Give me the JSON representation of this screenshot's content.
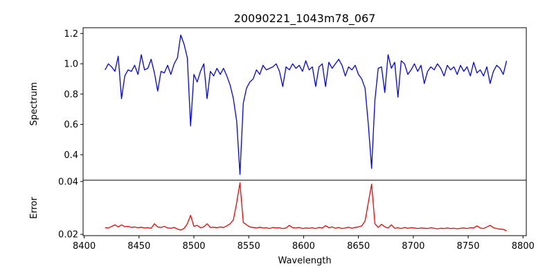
{
  "chart_data": [
    {
      "type": "line",
      "title": "20090221_1043m78_067",
      "xlabel": "",
      "ylabel": "Spectrum",
      "xlim": [
        8399,
        8803
      ],
      "ylim": [
        0.232,
        1.238
      ],
      "yticks": [
        "0.4",
        "0.6",
        "0.8",
        "1.0",
        "1.2"
      ],
      "ytick_values": [
        0.4,
        0.6,
        0.8,
        1.0,
        1.2
      ],
      "grid": false,
      "series": [
        {
          "name": "Spectrum",
          "color": "#0000ff",
          "x_start": 8419,
          "x_step": 3,
          "values": [
            0.96,
            1.0,
            0.98,
            0.95,
            1.05,
            0.77,
            0.92,
            0.96,
            0.95,
            0.99,
            0.93,
            1.06,
            0.96,
            0.97,
            1.03,
            0.94,
            0.82,
            0.95,
            0.94,
            0.99,
            0.93,
            1.0,
            1.04,
            1.19,
            1.13,
            1.04,
            0.59,
            0.93,
            0.88,
            0.95,
            1.0,
            0.77,
            0.95,
            0.92,
            0.97,
            0.93,
            0.97,
            0.92,
            0.86,
            0.77,
            0.62,
            0.27,
            0.74,
            0.84,
            0.88,
            0.9,
            0.96,
            0.93,
            0.99,
            0.96,
            0.97,
            0.98,
            1.0,
            0.95,
            0.85,
            0.98,
            0.96,
            1.0,
            0.97,
            0.99,
            0.95,
            1.02,
            0.96,
            0.98,
            0.85,
            0.98,
            1.0,
            0.85,
            1.01,
            0.97,
            1.0,
            1.03,
            0.99,
            0.92,
            0.98,
            0.96,
            0.99,
            0.93,
            0.9,
            0.84,
            0.6,
            0.31,
            0.76,
            0.97,
            0.98,
            0.81,
            1.06,
            0.97,
            1.01,
            0.78,
            1.02,
            1.0,
            0.93,
            0.96,
            1.0,
            0.95,
            0.99,
            0.87,
            0.95,
            0.98,
            0.96,
            1.0,
            0.97,
            0.92,
            0.99,
            0.96,
            0.98,
            0.93,
            0.99,
            0.95,
            0.98,
            0.92,
            1.01,
            0.94,
            0.96,
            0.92,
            0.98,
            0.87,
            0.95,
            0.99,
            0.97,
            0.93,
            1.02
          ]
        }
      ]
    },
    {
      "type": "line",
      "title": "",
      "xlabel": "Wavelength",
      "ylabel": "Error",
      "xlim": [
        8399,
        8803
      ],
      "ylim": [
        0.0195,
        0.0405
      ],
      "xticks": [
        "8400",
        "8450",
        "8500",
        "8550",
        "8600",
        "8650",
        "8700",
        "8750",
        "8800"
      ],
      "xtick_values": [
        8400,
        8450,
        8500,
        8550,
        8600,
        8650,
        8700,
        8750,
        8800
      ],
      "yticks": [
        "0.02",
        "0.04"
      ],
      "ytick_values": [
        0.02,
        0.04
      ],
      "grid": false,
      "series": [
        {
          "name": "Error",
          "color": "#ff0000",
          "x_start": 8419,
          "x_step": 3,
          "values": [
            0.0225,
            0.0224,
            0.023,
            0.0236,
            0.0228,
            0.0236,
            0.0229,
            0.023,
            0.0226,
            0.0228,
            0.0225,
            0.0227,
            0.0224,
            0.0225,
            0.0223,
            0.024,
            0.0228,
            0.0226,
            0.023,
            0.0224,
            0.0223,
            0.0226,
            0.022,
            0.0216,
            0.0222,
            0.024,
            0.0272,
            0.023,
            0.0234,
            0.0225,
            0.0228,
            0.024,
            0.0226,
            0.0227,
            0.0225,
            0.0228,
            0.0226,
            0.0232,
            0.024,
            0.0255,
            0.032,
            0.0395,
            0.0245,
            0.0236,
            0.0228,
            0.0226,
            0.0224,
            0.0227,
            0.0224,
            0.0225,
            0.0222,
            0.0226,
            0.0224,
            0.0225,
            0.0222,
            0.0224,
            0.0234,
            0.0225,
            0.0224,
            0.0226,
            0.0222,
            0.0224,
            0.0223,
            0.0225,
            0.0222,
            0.0226,
            0.0224,
            0.0233,
            0.0225,
            0.0228,
            0.0223,
            0.0226,
            0.0222,
            0.0224,
            0.0227,
            0.0223,
            0.0226,
            0.0228,
            0.0232,
            0.025,
            0.032,
            0.039,
            0.024,
            0.0226,
            0.0238,
            0.0228,
            0.0224,
            0.0236,
            0.0223,
            0.0225,
            0.0222,
            0.0226,
            0.0223,
            0.0225,
            0.0224,
            0.0222,
            0.0224,
            0.0223,
            0.0222,
            0.0225,
            0.0223,
            0.0221,
            0.0223,
            0.0222,
            0.0224,
            0.0222,
            0.0223,
            0.0221,
            0.0223,
            0.0224,
            0.0222,
            0.0225,
            0.0224,
            0.0232,
            0.0224,
            0.0222,
            0.0228,
            0.0234,
            0.0225,
            0.0222,
            0.022,
            0.0219,
            0.0213
          ]
        }
      ]
    }
  ]
}
